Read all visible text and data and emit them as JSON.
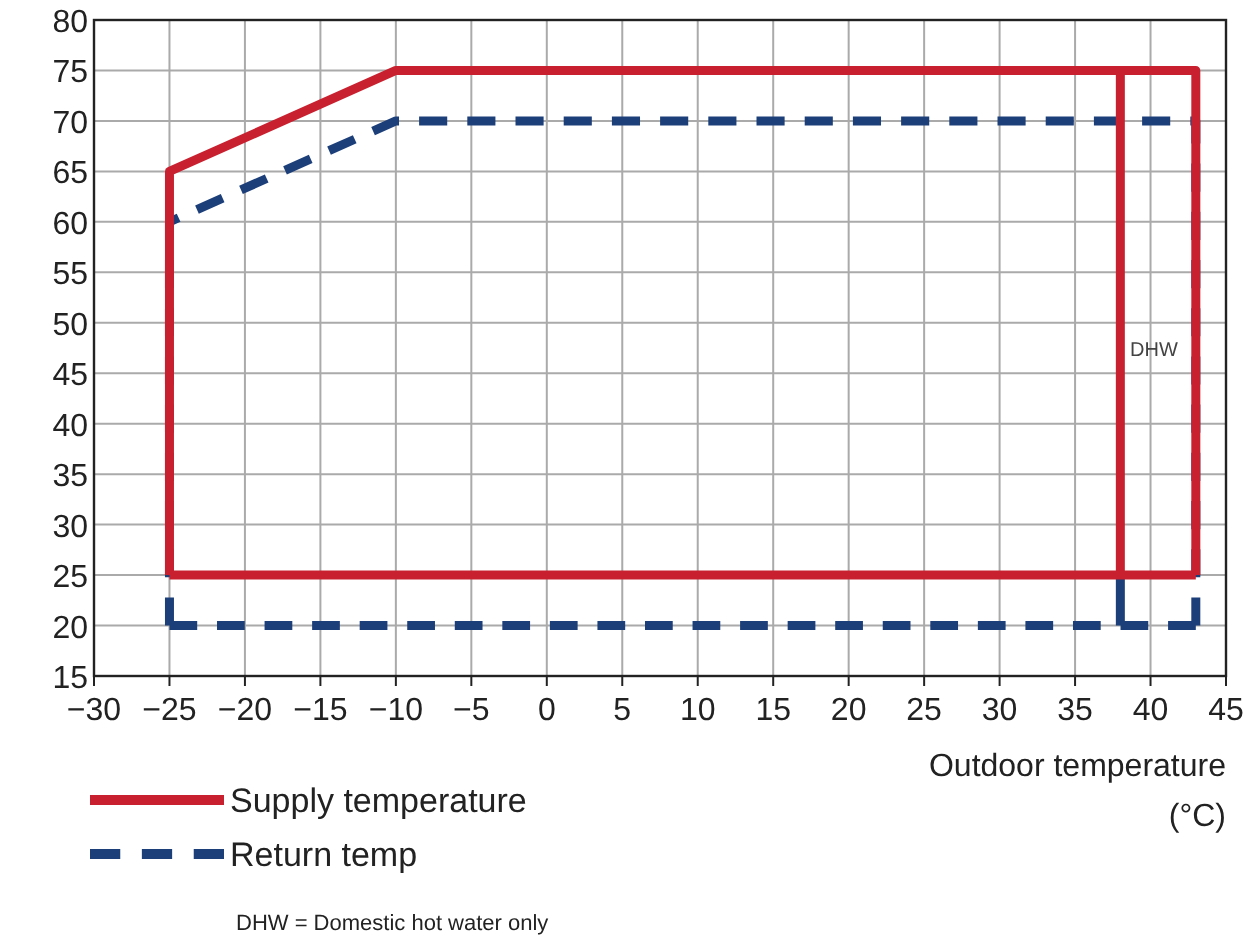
{
  "chart_data": {
    "type": "line",
    "xlabel": "Outdoor temperature (°C)",
    "xlim": [
      -30,
      45
    ],
    "xticks": [
      -30,
      -25,
      -20,
      -15,
      -10,
      -5,
      0,
      5,
      10,
      15,
      20,
      25,
      30,
      35,
      40,
      45
    ],
    "ylim": [
      15,
      80
    ],
    "yticks": [
      15,
      20,
      25,
      30,
      35,
      40,
      45,
      50,
      55,
      60,
      65,
      70,
      75,
      80
    ],
    "grid": true,
    "legend": "bottom left",
    "series": [
      {
        "name": "Supply temperature",
        "color": "#c8202f",
        "line_style": "solid",
        "x": [
          -25,
          -25,
          -10,
          43,
          43
        ],
        "values": [
          25,
          65,
          75,
          75,
          25
        ]
      },
      {
        "color": "#c8202f",
        "line_style": "solid",
        "x": [
          -25,
          43
        ],
        "values": [
          25,
          25
        ]
      },
      {
        "color": "#c8202f",
        "line_style": "solid",
        "x": [
          38,
          38
        ],
        "values": [
          25,
          75
        ]
      },
      {
        "name": "Return temp",
        "color": "#1c3f7a",
        "line_style": "dashed",
        "x": [
          -25,
          -25,
          -10,
          43,
          43
        ],
        "values": [
          20,
          60,
          70,
          70,
          20
        ]
      },
      {
        "color": "#1c3f7a",
        "line_style": "dashed",
        "x": [
          -25,
          43
        ],
        "values": [
          20,
          20
        ]
      },
      {
        "color": "#1c3f7a",
        "line_style": "dashed",
        "x": [
          38,
          38
        ],
        "values": [
          20,
          25
        ]
      }
    ],
    "annotations": [
      "DHW",
      "DHW = Domestic hot water only"
    ]
  }
}
